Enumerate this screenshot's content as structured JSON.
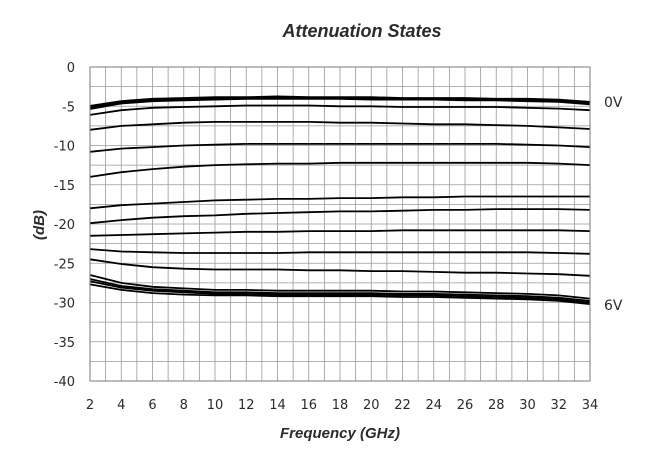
{
  "chart_data": {
    "type": "line",
    "title": "Attenuation States",
    "xlabel": "Frequency (GHz)",
    "ylabel": "(dB)",
    "xlim": [
      2,
      34
    ],
    "ylim": [
      -40,
      0
    ],
    "x_ticks": [
      2,
      4,
      6,
      8,
      10,
      12,
      14,
      16,
      18,
      20,
      22,
      24,
      26,
      28,
      30,
      32,
      34
    ],
    "y_ticks": [
      0,
      -5,
      -10,
      -15,
      -20,
      -25,
      -30,
      -35,
      -40
    ],
    "grid": true,
    "legend": "none",
    "line_color": "#000000",
    "x": [
      2,
      4,
      6,
      8,
      10,
      12,
      14,
      16,
      18,
      20,
      22,
      24,
      26,
      28,
      30,
      32,
      34
    ],
    "series": [
      {
        "values": [
          -5.3,
          -4.6,
          -4.3,
          -4.2,
          -4.1,
          -4.0,
          -4.0,
          -4.0,
          -4.0,
          -4.1,
          -4.1,
          -4.1,
          -4.2,
          -4.2,
          -4.3,
          -4.4,
          -4.7
        ]
      },
      {
        "values": [
          -5.0,
          -4.4,
          -4.1,
          -4.0,
          -3.9,
          -3.9,
          -3.8,
          -3.9,
          -3.9,
          -3.9,
          -4.0,
          -4.0,
          -4.0,
          -4.1,
          -4.1,
          -4.2,
          -4.5
        ]
      },
      {
        "values": [
          -6.1,
          -5.5,
          -5.2,
          -5.1,
          -5.0,
          -4.9,
          -4.9,
          -4.9,
          -5.0,
          -5.0,
          -5.1,
          -5.1,
          -5.1,
          -5.1,
          -5.2,
          -5.3,
          -5.5
        ]
      },
      {
        "values": [
          -8.0,
          -7.5,
          -7.3,
          -7.1,
          -7.0,
          -7.0,
          -7.0,
          -7.0,
          -7.1,
          -7.1,
          -7.2,
          -7.3,
          -7.3,
          -7.4,
          -7.5,
          -7.7,
          -7.9
        ]
      },
      {
        "values": [
          -10.8,
          -10.4,
          -10.2,
          -10.0,
          -9.9,
          -9.8,
          -9.8,
          -9.8,
          -9.8,
          -9.8,
          -9.8,
          -9.8,
          -9.8,
          -9.8,
          -9.9,
          -10.0,
          -10.2
        ]
      },
      {
        "values": [
          -14.0,
          -13.4,
          -13.0,
          -12.7,
          -12.5,
          -12.4,
          -12.3,
          -12.3,
          -12.2,
          -12.2,
          -12.2,
          -12.2,
          -12.2,
          -12.2,
          -12.2,
          -12.3,
          -12.5
        ]
      },
      {
        "values": [
          -18.0,
          -17.6,
          -17.4,
          -17.2,
          -17.0,
          -16.9,
          -16.8,
          -16.8,
          -16.7,
          -16.7,
          -16.6,
          -16.6,
          -16.5,
          -16.5,
          -16.5,
          -16.5,
          -16.5
        ]
      },
      {
        "values": [
          -19.9,
          -19.5,
          -19.2,
          -19.0,
          -18.9,
          -18.7,
          -18.6,
          -18.5,
          -18.4,
          -18.4,
          -18.3,
          -18.2,
          -18.2,
          -18.1,
          -18.1,
          -18.1,
          -18.2
        ]
      },
      {
        "values": [
          -21.5,
          -21.4,
          -21.3,
          -21.2,
          -21.1,
          -21.0,
          -21.0,
          -20.9,
          -20.9,
          -20.9,
          -20.8,
          -20.8,
          -20.8,
          -20.8,
          -20.8,
          -20.8,
          -20.9
        ]
      },
      {
        "values": [
          -23.2,
          -23.5,
          -23.6,
          -23.7,
          -23.7,
          -23.7,
          -23.7,
          -23.6,
          -23.6,
          -23.6,
          -23.6,
          -23.6,
          -23.6,
          -23.6,
          -23.6,
          -23.7,
          -23.8
        ]
      },
      {
        "values": [
          -24.5,
          -25.1,
          -25.5,
          -25.7,
          -25.8,
          -25.8,
          -25.8,
          -25.9,
          -25.9,
          -26.0,
          -26.0,
          -26.1,
          -26.2,
          -26.2,
          -26.3,
          -26.4,
          -26.6
        ]
      },
      {
        "values": [
          -26.5,
          -27.5,
          -28.0,
          -28.2,
          -28.4,
          -28.4,
          -28.5,
          -28.5,
          -28.5,
          -28.5,
          -28.6,
          -28.6,
          -28.7,
          -28.8,
          -28.9,
          -29.1,
          -29.5
        ]
      },
      {
        "values": [
          -27.0,
          -27.9,
          -28.3,
          -28.5,
          -28.7,
          -28.7,
          -28.8,
          -28.8,
          -28.8,
          -28.8,
          -28.9,
          -28.9,
          -29.0,
          -29.1,
          -29.2,
          -29.4,
          -29.8
        ]
      },
      {
        "values": [
          -27.3,
          -28.1,
          -28.5,
          -28.7,
          -28.9,
          -28.9,
          -29.0,
          -29.0,
          -29.0,
          -29.0,
          -29.1,
          -29.1,
          -29.2,
          -29.3,
          -29.4,
          -29.6,
          -30.0
        ]
      },
      {
        "values": [
          -27.7,
          -28.4,
          -28.8,
          -29.0,
          -29.1,
          -29.1,
          -29.2,
          -29.2,
          -29.2,
          -29.2,
          -29.3,
          -29.3,
          -29.4,
          -29.5,
          -29.6,
          -29.8,
          -30.2
        ]
      }
    ],
    "annotations": [
      {
        "text": "0V",
        "x": 34,
        "y": -4.3
      },
      {
        "text": "6V",
        "x": 34,
        "y": -30.2
      }
    ]
  }
}
